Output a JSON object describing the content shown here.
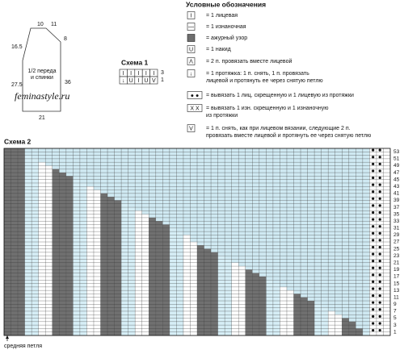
{
  "pattern": {
    "dimensions": [
      "10",
      "11",
      "8",
      "16.5",
      "27.5",
      "36",
      "21"
    ],
    "label": [
      "1/2 переда",
      "и спинки"
    ],
    "watermark": "feminastyle.ru"
  },
  "scheme1": {
    "title": "Схема 1",
    "cells": [
      "I",
      "I",
      "I",
      "I",
      "I",
      "↓",
      "U",
      "I",
      "U",
      "V"
    ],
    "row_numbers": [
      "3",
      "1"
    ]
  },
  "legend": {
    "title": "Условные обозначения",
    "items": [
      {
        "symbol": "I",
        "text": [
          "= 1 лицевая"
        ]
      },
      {
        "symbol": "—",
        "text": [
          "= 1 изнаночная"
        ]
      },
      {
        "symbol": "",
        "text": [
          "= ажурный узор"
        ]
      },
      {
        "symbol": "U",
        "text": [
          "= 1 накид"
        ]
      },
      {
        "symbol": "Λ",
        "text": [
          "= 2 п. провязать вместе лицевой"
        ]
      },
      {
        "symbol": "↓",
        "text": [
          "= 1 протяжка: 1 п. снять, 1 п. провязать",
          "лицевой и протянуть ее через снятую петлю"
        ]
      },
      {
        "symbol": "● ●",
        "text": [
          "= вывязать 1 лиц. скрещенную и 1 лицевую из протяжки"
        ]
      },
      {
        "symbol": "X X",
        "text": [
          "= вывязать 1 изн. скрещенную и 1 изнаночную",
          "из протяжки"
        ]
      },
      {
        "symbol": "V",
        "text": [
          "= 1 п. снять, как при лицевом вязании, следующие 2 п.",
          "провязать вместе лицевой и протянуть ее через снятую петлю"
        ]
      }
    ]
  },
  "scheme2": {
    "title": "Схема 2",
    "row_numbers": [
      1,
      3,
      5,
      7,
      9,
      11,
      13,
      15,
      17,
      19,
      21,
      23,
      25,
      27,
      29,
      31,
      33,
      35,
      37,
      39,
      41,
      43,
      45,
      47,
      49,
      51,
      53
    ],
    "footnote": "средняя петля"
  }
}
